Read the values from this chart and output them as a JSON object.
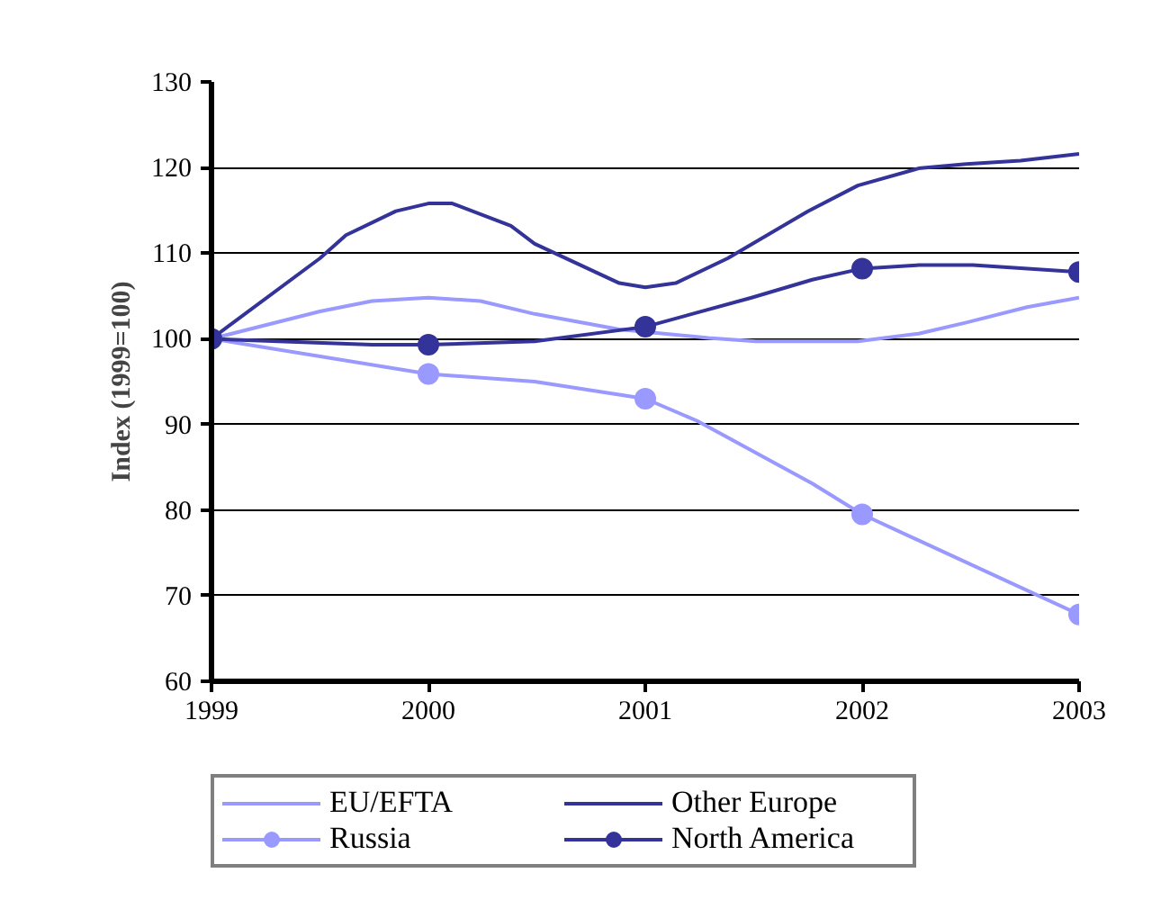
{
  "chart_data": {
    "type": "line",
    "ylabel": "Index (1999=100)",
    "xlim": [
      1999,
      2003
    ],
    "xticks": [
      1999,
      2000,
      2001,
      2002,
      2003
    ],
    "ylim": [
      60,
      130
    ],
    "yticks": [
      60,
      70,
      80,
      90,
      100,
      110,
      120,
      130
    ],
    "grid": "y",
    "legend": "bottom",
    "marker": "none",
    "line_style": "solid",
    "series": [
      {
        "name": "EU/EFTA",
        "color": "#9999ff",
        "x": [
          1999,
          1999.5,
          1999.74,
          2000,
          2000.24,
          2000.49,
          2000.88,
          2001.29,
          2001.51,
          2001.98,
          2002.26,
          2002.48,
          2002.76,
          2003
        ],
        "values": [
          100,
          103.2,
          104.4,
          104.8,
          104.4,
          102.9,
          101.1,
          100.1,
          99.7,
          99.7,
          100.6,
          101.9,
          103.7,
          104.8
        ]
      },
      {
        "name": "Other Europe",
        "color": "#333399",
        "x": [
          1999,
          1999.5,
          1999.62,
          1999.85,
          2000,
          2000.11,
          2000.38,
          2000.49,
          2000.88,
          2001,
          2001.14,
          2001.38,
          2001.75,
          2001.98,
          2002.26,
          2002.48,
          2002.73,
          2003
        ],
        "values": [
          100,
          109.4,
          112.1,
          114.9,
          115.8,
          115.8,
          113.2,
          111.1,
          106.5,
          106.0,
          106.5,
          109.4,
          114.9,
          117.9,
          119.9,
          120.4,
          120.8,
          121.6
        ]
      },
      {
        "name": "Russia",
        "color": "#9999ff",
        "x": [
          1999,
          2000,
          2000.49,
          2001,
          2001.24,
          2001.77,
          2002,
          2003
        ],
        "values": [
          100,
          95.9,
          95.0,
          93.0,
          90.4,
          83.1,
          79.5,
          67.8
        ]
      },
      {
        "type": "scatter",
        "marker": "circle",
        "color": "#9999ff",
        "x": [
          2000,
          2001,
          2002,
          2003
        ],
        "values": [
          95.9,
          93.0,
          79.5,
          67.8
        ]
      },
      {
        "name": "North America",
        "color": "#333399",
        "x": [
          1999,
          1999.74,
          2000,
          2000.49,
          2001,
          2001.49,
          2001.77,
          2002,
          2002.26,
          2002.51,
          2003
        ],
        "values": [
          100,
          99.3,
          99.3,
          99.7,
          101.4,
          104.8,
          106.9,
          108.2,
          108.6,
          108.6,
          107.8
        ]
      },
      {
        "type": "scatter",
        "marker": "circle",
        "color": "#333399",
        "x": [
          1999,
          2000,
          2001,
          2002,
          2003
        ],
        "values": [
          100,
          99.3,
          101.4,
          108.2,
          107.8
        ]
      }
    ]
  }
}
